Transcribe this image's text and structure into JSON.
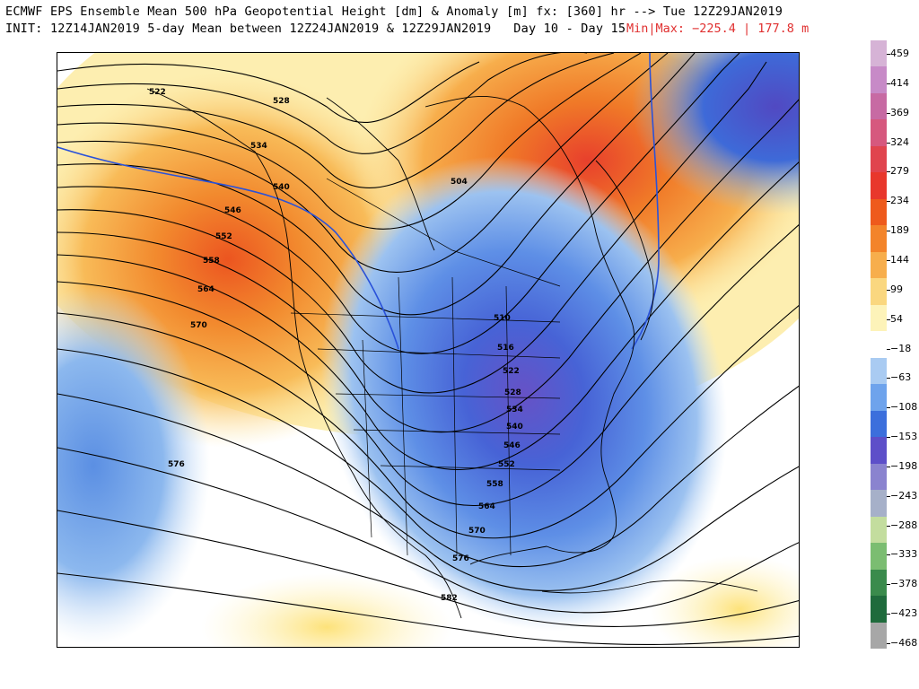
{
  "header": {
    "title_line1": "ECMWF EPS Ensemble Mean 500 hPa Geopotential Height [dm] & Anomaly [m] fx: [360] hr --> Tue 12Z29JAN2019",
    "title_line2": "INIT: 12Z14JAN2019 5-day Mean between 12Z24JAN2019 & 12Z29JAN2019   Day 10 - Day 15",
    "minmax": "Min|Max: −225.4 | 177.8 m",
    "minmax_color": "#e03030"
  },
  "map": {
    "region": "North America",
    "contour_interval_dm": 6,
    "contour_labels": [
      "522",
      "528",
      "534",
      "540",
      "546",
      "552",
      "558",
      "564",
      "570",
      "576",
      "582",
      "504",
      "510",
      "516",
      "522",
      "528",
      "534",
      "540",
      "546",
      "552",
      "558",
      "564",
      "570",
      "576",
      "582"
    ],
    "highlight_contour_color": "#2a52d9"
  },
  "colorbar": {
    "levels": [
      "459",
      "414",
      "369",
      "324",
      "279",
      "234",
      "189",
      "144",
      "99",
      "54",
      "−18",
      "−63",
      "−108",
      "−153",
      "−198",
      "−243",
      "−288",
      "−333",
      "−378",
      "−423",
      "−468"
    ],
    "colors": [
      "#d6b3d6",
      "#c78ac7",
      "#c76aa3",
      "#d6587e",
      "#e0444e",
      "#e8372c",
      "#ee5a1c",
      "#f3842a",
      "#f7ae4c",
      "#fad77f",
      "#fdf3b9",
      "#ffffff",
      "#a9cbf2",
      "#6ea3ec",
      "#3c6fdc",
      "#5d4fc9",
      "#8a83cf",
      "#a6b0c9",
      "#c3dd9e",
      "#7bbd71",
      "#3a8b4c",
      "#1f6b3c",
      "#a7a7a7"
    ]
  }
}
